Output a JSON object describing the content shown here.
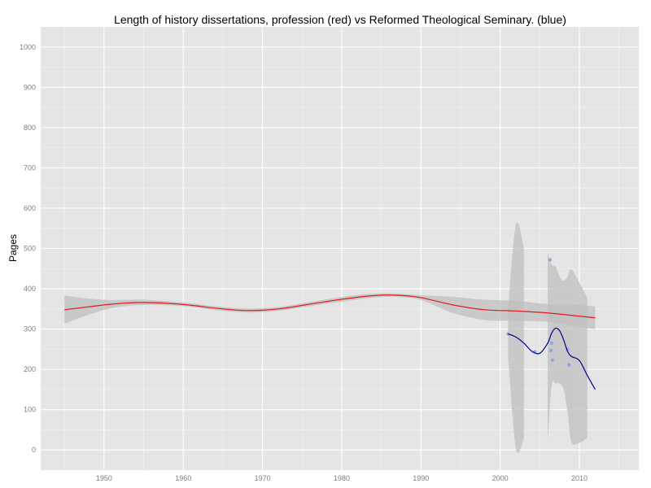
{
  "chart_data": {
    "type": "scatter",
    "title": "Length of history dissertations, profession (red) vs Reformed Theological Seminary. (blue)",
    "xlabel": "",
    "ylabel": "Pages",
    "xlim": [
      1942,
      2017.5
    ],
    "ylim": [
      -50,
      1050
    ],
    "x_ticks": [
      1950,
      1960,
      1970,
      1980,
      1990,
      2000,
      2010
    ],
    "y_ticks": [
      0,
      100,
      200,
      300,
      400,
      500,
      600,
      700,
      800,
      900,
      1000
    ],
    "grid": true,
    "colors": {
      "panel": "#e5e5e5",
      "grid_major": "#ffffff",
      "grid_minor": "#f2f2f2",
      "band": "#bfbfbf",
      "profession": "#e41a1c",
      "seminary": "#00008b",
      "points": "#7b9fe8"
    },
    "series": [
      {
        "type": "smooth",
        "color": "#e41a1c",
        "x": [
          1945,
          1948,
          1951,
          1955,
          1960,
          1964,
          1968,
          1972,
          1976,
          1980,
          1984,
          1987,
          1990,
          1994,
          1998,
          2002,
          2006,
          2010,
          2012
        ],
        "y": [
          348,
          355,
          362,
          366,
          361,
          352,
          346,
          350,
          362,
          374,
          383,
          384,
          378,
          360,
          348,
          345,
          340,
          332,
          328
        ],
        "lower": [
          313,
          335,
          352,
          360,
          357,
          347,
          341,
          345,
          357,
          368,
          378,
          380,
          372,
          340,
          323,
          320,
          318,
          305,
          300
        ],
        "upper": [
          383,
          376,
          372,
          373,
          366,
          357,
          351,
          355,
          367,
          380,
          388,
          388,
          384,
          380,
          373,
          370,
          362,
          360,
          356
        ]
      },
      {
        "type": "smooth",
        "color": "#00008b",
        "x": [
          2001,
          2002,
          2003,
          2004,
          2005,
          2006,
          2006.5,
          2007,
          2007.5,
          2008,
          2008.5,
          2009,
          2010,
          2011,
          2012
        ],
        "y": [
          288,
          280,
          265,
          245,
          240,
          265,
          290,
          302,
          296,
          274,
          245,
          232,
          222,
          185,
          150
        ],
        "lower": [
          230,
          3,
          30,
          null,
          null,
          25,
          160,
          165,
          165,
          150,
          95,
          20,
          18,
          30,
          null
        ],
        "upper": [
          350,
          560,
          500,
          null,
          null,
          490,
          460,
          455,
          430,
          420,
          430,
          448,
          415,
          378,
          null
        ]
      }
    ],
    "points": {
      "color": "#7b9fe8",
      "x": [
        2001,
        2004.4,
        2006.3,
        2006.4,
        2006.5,
        2006.6,
        2008.5,
        2008.7
      ],
      "y": [
        288,
        244,
        472,
        247,
        265,
        223,
        250,
        211
      ]
    }
  }
}
